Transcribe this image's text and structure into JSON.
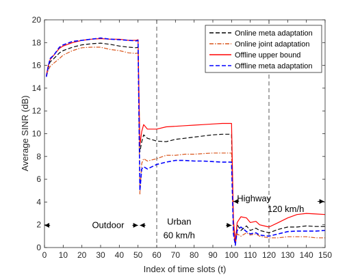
{
  "chart_data": {
    "type": "line",
    "xlabel": "Index of time slots (t)",
    "ylabel": "Average SINR (dB)",
    "xlim": [
      0,
      150
    ],
    "ylim": [
      0,
      20
    ],
    "xticks": [
      0,
      10,
      20,
      30,
      40,
      50,
      60,
      70,
      80,
      90,
      100,
      110,
      120,
      130,
      140,
      150
    ],
    "yticks": [
      0,
      2,
      4,
      6,
      8,
      10,
      12,
      14,
      16,
      18,
      20
    ],
    "grid": false,
    "legend_position": "top-right",
    "vlines": [
      60,
      120
    ],
    "series": [
      {
        "name": "Online meta adaptation",
        "color": "#000000",
        "style": "dashed",
        "points": [
          [
            1,
            15.1
          ],
          [
            2,
            15.8
          ],
          [
            3,
            16.3
          ],
          [
            5,
            16.6
          ],
          [
            8,
            17.1
          ],
          [
            10,
            17.3
          ],
          [
            15,
            17.6
          ],
          [
            20,
            17.8
          ],
          [
            25,
            17.9
          ],
          [
            30,
            17.95
          ],
          [
            35,
            17.85
          ],
          [
            40,
            17.7
          ],
          [
            45,
            17.6
          ],
          [
            49,
            17.55
          ],
          [
            50,
            17.6
          ],
          [
            51,
            8.4
          ],
          [
            52,
            9.3
          ],
          [
            53,
            9.9
          ],
          [
            55,
            9.6
          ],
          [
            60,
            9.35
          ],
          [
            65,
            9.3
          ],
          [
            70,
            9.5
          ],
          [
            75,
            9.6
          ],
          [
            80,
            9.7
          ],
          [
            85,
            9.8
          ],
          [
            90,
            9.9
          ],
          [
            95,
            9.95
          ],
          [
            99,
            9.95
          ],
          [
            100,
            9.95
          ],
          [
            101,
            1.5
          ],
          [
            102,
            0.6
          ],
          [
            103,
            2.0
          ],
          [
            105,
            1.5
          ],
          [
            108,
            1.9
          ],
          [
            110,
            1.5
          ],
          [
            113,
            1.7
          ],
          [
            115,
            1.5
          ],
          [
            120,
            1.3
          ],
          [
            125,
            1.6
          ],
          [
            130,
            1.8
          ],
          [
            135,
            1.8
          ],
          [
            140,
            1.9
          ],
          [
            145,
            1.85
          ],
          [
            150,
            1.85
          ]
        ]
      },
      {
        "name": "Online joint adaptation",
        "color": "#d95319",
        "style": "dashdot",
        "points": [
          [
            1,
            15.0
          ],
          [
            2,
            15.6
          ],
          [
            3,
            15.9
          ],
          [
            5,
            16.2
          ],
          [
            8,
            16.6
          ],
          [
            10,
            16.9
          ],
          [
            15,
            17.3
          ],
          [
            20,
            17.55
          ],
          [
            25,
            17.6
          ],
          [
            30,
            17.6
          ],
          [
            35,
            17.4
          ],
          [
            40,
            17.3
          ],
          [
            45,
            17.1
          ],
          [
            49,
            17.05
          ],
          [
            50,
            17.1
          ],
          [
            51,
            4.7
          ],
          [
            52,
            7.4
          ],
          [
            53,
            7.8
          ],
          [
            55,
            7.6
          ],
          [
            60,
            7.8
          ],
          [
            65,
            8.1
          ],
          [
            70,
            8.1
          ],
          [
            75,
            8.2
          ],
          [
            80,
            8.2
          ],
          [
            85,
            8.25
          ],
          [
            90,
            8.3
          ],
          [
            95,
            8.3
          ],
          [
            99,
            8.3
          ],
          [
            100,
            8.3
          ],
          [
            101,
            1.4
          ],
          [
            102,
            0.3
          ],
          [
            103,
            1.2
          ],
          [
            105,
            1.0
          ],
          [
            108,
            1.3
          ],
          [
            110,
            1.1
          ],
          [
            113,
            1.2
          ],
          [
            115,
            1.0
          ],
          [
            120,
            0.85
          ],
          [
            125,
            0.85
          ],
          [
            130,
            0.95
          ],
          [
            135,
            0.95
          ],
          [
            140,
            0.95
          ],
          [
            145,
            0.85
          ],
          [
            150,
            0.85
          ]
        ]
      },
      {
        "name": "Offline upper bound",
        "color": "#ff0000",
        "style": "solid",
        "points": [
          [
            1,
            15.1
          ],
          [
            2,
            16.0
          ],
          [
            3,
            16.5
          ],
          [
            5,
            16.9
          ],
          [
            8,
            17.5
          ],
          [
            10,
            17.7
          ],
          [
            15,
            18.0
          ],
          [
            20,
            18.2
          ],
          [
            25,
            18.3
          ],
          [
            30,
            18.35
          ],
          [
            35,
            18.3
          ],
          [
            40,
            18.3
          ],
          [
            45,
            18.2
          ],
          [
            49,
            18.2
          ],
          [
            50,
            18.25
          ],
          [
            51,
            9.0
          ],
          [
            52,
            10.2
          ],
          [
            53,
            10.8
          ],
          [
            55,
            10.4
          ],
          [
            60,
            10.4
          ],
          [
            65,
            10.6
          ],
          [
            70,
            10.65
          ],
          [
            75,
            10.7
          ],
          [
            80,
            10.75
          ],
          [
            85,
            10.8
          ],
          [
            90,
            10.85
          ],
          [
            95,
            10.9
          ],
          [
            99,
            10.9
          ],
          [
            100,
            10.9
          ],
          [
            101,
            2.5
          ],
          [
            102,
            0.4
          ],
          [
            103,
            2.2
          ],
          [
            105,
            2.7
          ],
          [
            108,
            2.6
          ],
          [
            110,
            2.2
          ],
          [
            113,
            2.3
          ],
          [
            115,
            2.0
          ],
          [
            120,
            1.8
          ],
          [
            125,
            2.2
          ],
          [
            130,
            2.6
          ],
          [
            135,
            2.9
          ],
          [
            140,
            3.0
          ],
          [
            145,
            2.95
          ],
          [
            150,
            2.9
          ]
        ]
      },
      {
        "name": "Offline meta adaptation",
        "color": "#0000ff",
        "style": "dashed",
        "points": [
          [
            1,
            15.0
          ],
          [
            2,
            15.9
          ],
          [
            3,
            16.6
          ],
          [
            5,
            16.9
          ],
          [
            8,
            17.6
          ],
          [
            10,
            17.8
          ],
          [
            15,
            18.1
          ],
          [
            20,
            18.2
          ],
          [
            25,
            18.3
          ],
          [
            30,
            18.4
          ],
          [
            35,
            18.3
          ],
          [
            40,
            18.25
          ],
          [
            45,
            18.2
          ],
          [
            49,
            18.15
          ],
          [
            50,
            18.2
          ],
          [
            51,
            5.0
          ],
          [
            52,
            6.9
          ],
          [
            53,
            7.1
          ],
          [
            55,
            6.9
          ],
          [
            60,
            7.3
          ],
          [
            65,
            7.5
          ],
          [
            70,
            7.65
          ],
          [
            75,
            7.65
          ],
          [
            80,
            7.6
          ],
          [
            85,
            7.6
          ],
          [
            90,
            7.55
          ],
          [
            95,
            7.5
          ],
          [
            99,
            7.5
          ],
          [
            100,
            7.5
          ],
          [
            101,
            1.2
          ],
          [
            102,
            0.2
          ],
          [
            103,
            1.5
          ],
          [
            105,
            1.8
          ],
          [
            108,
            1.4
          ],
          [
            110,
            1.2
          ],
          [
            113,
            1.3
          ],
          [
            115,
            1.1
          ],
          [
            120,
            1.0
          ],
          [
            125,
            1.2
          ],
          [
            130,
            1.4
          ],
          [
            135,
            1.45
          ],
          [
            140,
            1.45
          ],
          [
            145,
            1.45
          ],
          [
            150,
            1.5
          ]
        ]
      }
    ],
    "annotations": [
      {
        "text": "Outdoor",
        "x": 34,
        "y": 1.95
      },
      {
        "text": "Urban",
        "x": 72,
        "y": 2.25
      },
      {
        "text": "60 km/h",
        "x": 72,
        "y": 1.05
      },
      {
        "text": "Highway",
        "x": 112,
        "y": 4.3
      },
      {
        "text": "120 km/h",
        "x": 129,
        "y": 3.35
      }
    ],
    "arrows": [
      {
        "from": [
          3,
          1.95
        ],
        "to": [
          0,
          1.95
        ]
      },
      {
        "from": [
          47,
          1.95
        ],
        "to": [
          50,
          1.95
        ]
      },
      {
        "from": [
          54,
          1.95
        ],
        "to": [
          51,
          1.95
        ]
      },
      {
        "from": [
          97,
          1.95
        ],
        "to": [
          100,
          1.95
        ]
      },
      {
        "from": [
          104,
          4.05
        ],
        "to": [
          101,
          4.05
        ]
      },
      {
        "from": [
          146,
          4.05
        ],
        "to": [
          149.5,
          4.05
        ]
      }
    ]
  }
}
